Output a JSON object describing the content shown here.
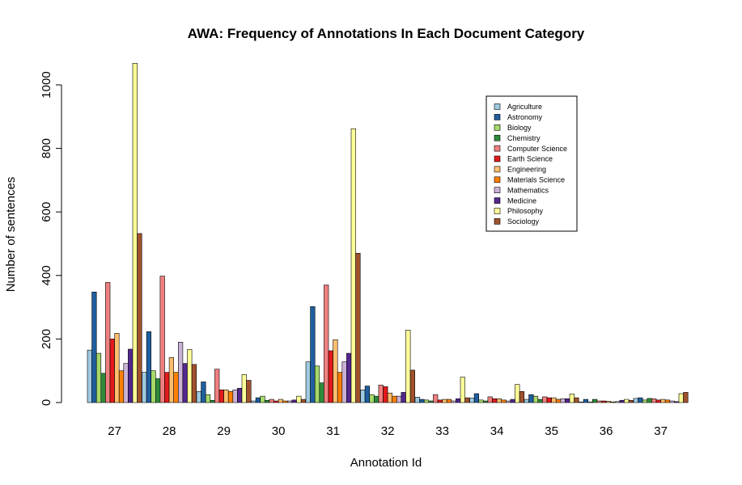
{
  "chart_data": {
    "type": "bar",
    "title": "AWA: Frequency of Annotations In Each Document Category",
    "xlabel": "Annotation Id",
    "ylabel": "Number of sentences",
    "ylim": [
      0,
      1070
    ],
    "yticks": [
      "0",
      "200",
      "400",
      "600",
      "800",
      "1000"
    ],
    "ytick_values": [
      0,
      200,
      400,
      600,
      800,
      1000
    ],
    "grid": false,
    "legend_position": "top-right",
    "categories": [
      "27",
      "28",
      "29",
      "30",
      "31",
      "32",
      "33",
      "34",
      "35",
      "36",
      "37"
    ],
    "series": [
      {
        "name": "Agriculture",
        "color": "#9ecae1",
        "values": [
          165,
          95,
          35,
          5,
          128,
          40,
          17,
          14,
          10,
          2,
          13
        ]
      },
      {
        "name": "Astronomy",
        "color": "#1f5fa0",
        "values": [
          348,
          223,
          65,
          15,
          302,
          52,
          10,
          28,
          25,
          10,
          15
        ]
      },
      {
        "name": "Biology",
        "color": "#a6d96a",
        "values": [
          155,
          100,
          25,
          20,
          115,
          25,
          8,
          8,
          20,
          2,
          8
        ]
      },
      {
        "name": "Chemistry",
        "color": "#2e8b3a",
        "values": [
          92,
          75,
          7,
          7,
          62,
          20,
          5,
          5,
          10,
          10,
          13
        ]
      },
      {
        "name": "Computer Science",
        "color": "#f08080",
        "values": [
          378,
          398,
          105,
          10,
          370,
          55,
          25,
          18,
          18,
          5,
          12
        ]
      },
      {
        "name": "Earth Science",
        "color": "#e31a1c",
        "values": [
          200,
          95,
          40,
          5,
          163,
          50,
          8,
          12,
          15,
          5,
          8
        ]
      },
      {
        "name": "Engineering",
        "color": "#fdbf6f",
        "values": [
          218,
          142,
          40,
          10,
          198,
          30,
          10,
          12,
          15,
          4,
          10
        ]
      },
      {
        "name": "Materials Science",
        "color": "#ff7f00",
        "values": [
          100,
          95,
          35,
          5,
          95,
          20,
          10,
          8,
          10,
          2,
          8
        ]
      },
      {
        "name": "Mathematics",
        "color": "#cab2d6",
        "values": [
          123,
          190,
          40,
          5,
          128,
          20,
          5,
          5,
          12,
          3,
          5
        ]
      },
      {
        "name": "Medicine",
        "color": "#54278f",
        "values": [
          168,
          123,
          45,
          8,
          155,
          32,
          12,
          10,
          12,
          7,
          3
        ]
      },
      {
        "name": "Philosophy",
        "color": "#ffff99",
        "values": [
          1068,
          167,
          88,
          20,
          862,
          228,
          80,
          57,
          27,
          10,
          28
        ]
      },
      {
        "name": "Sociology",
        "color": "#a0522d",
        "values": [
          532,
          120,
          70,
          10,
          470,
          102,
          15,
          35,
          15,
          7,
          32
        ]
      }
    ]
  }
}
